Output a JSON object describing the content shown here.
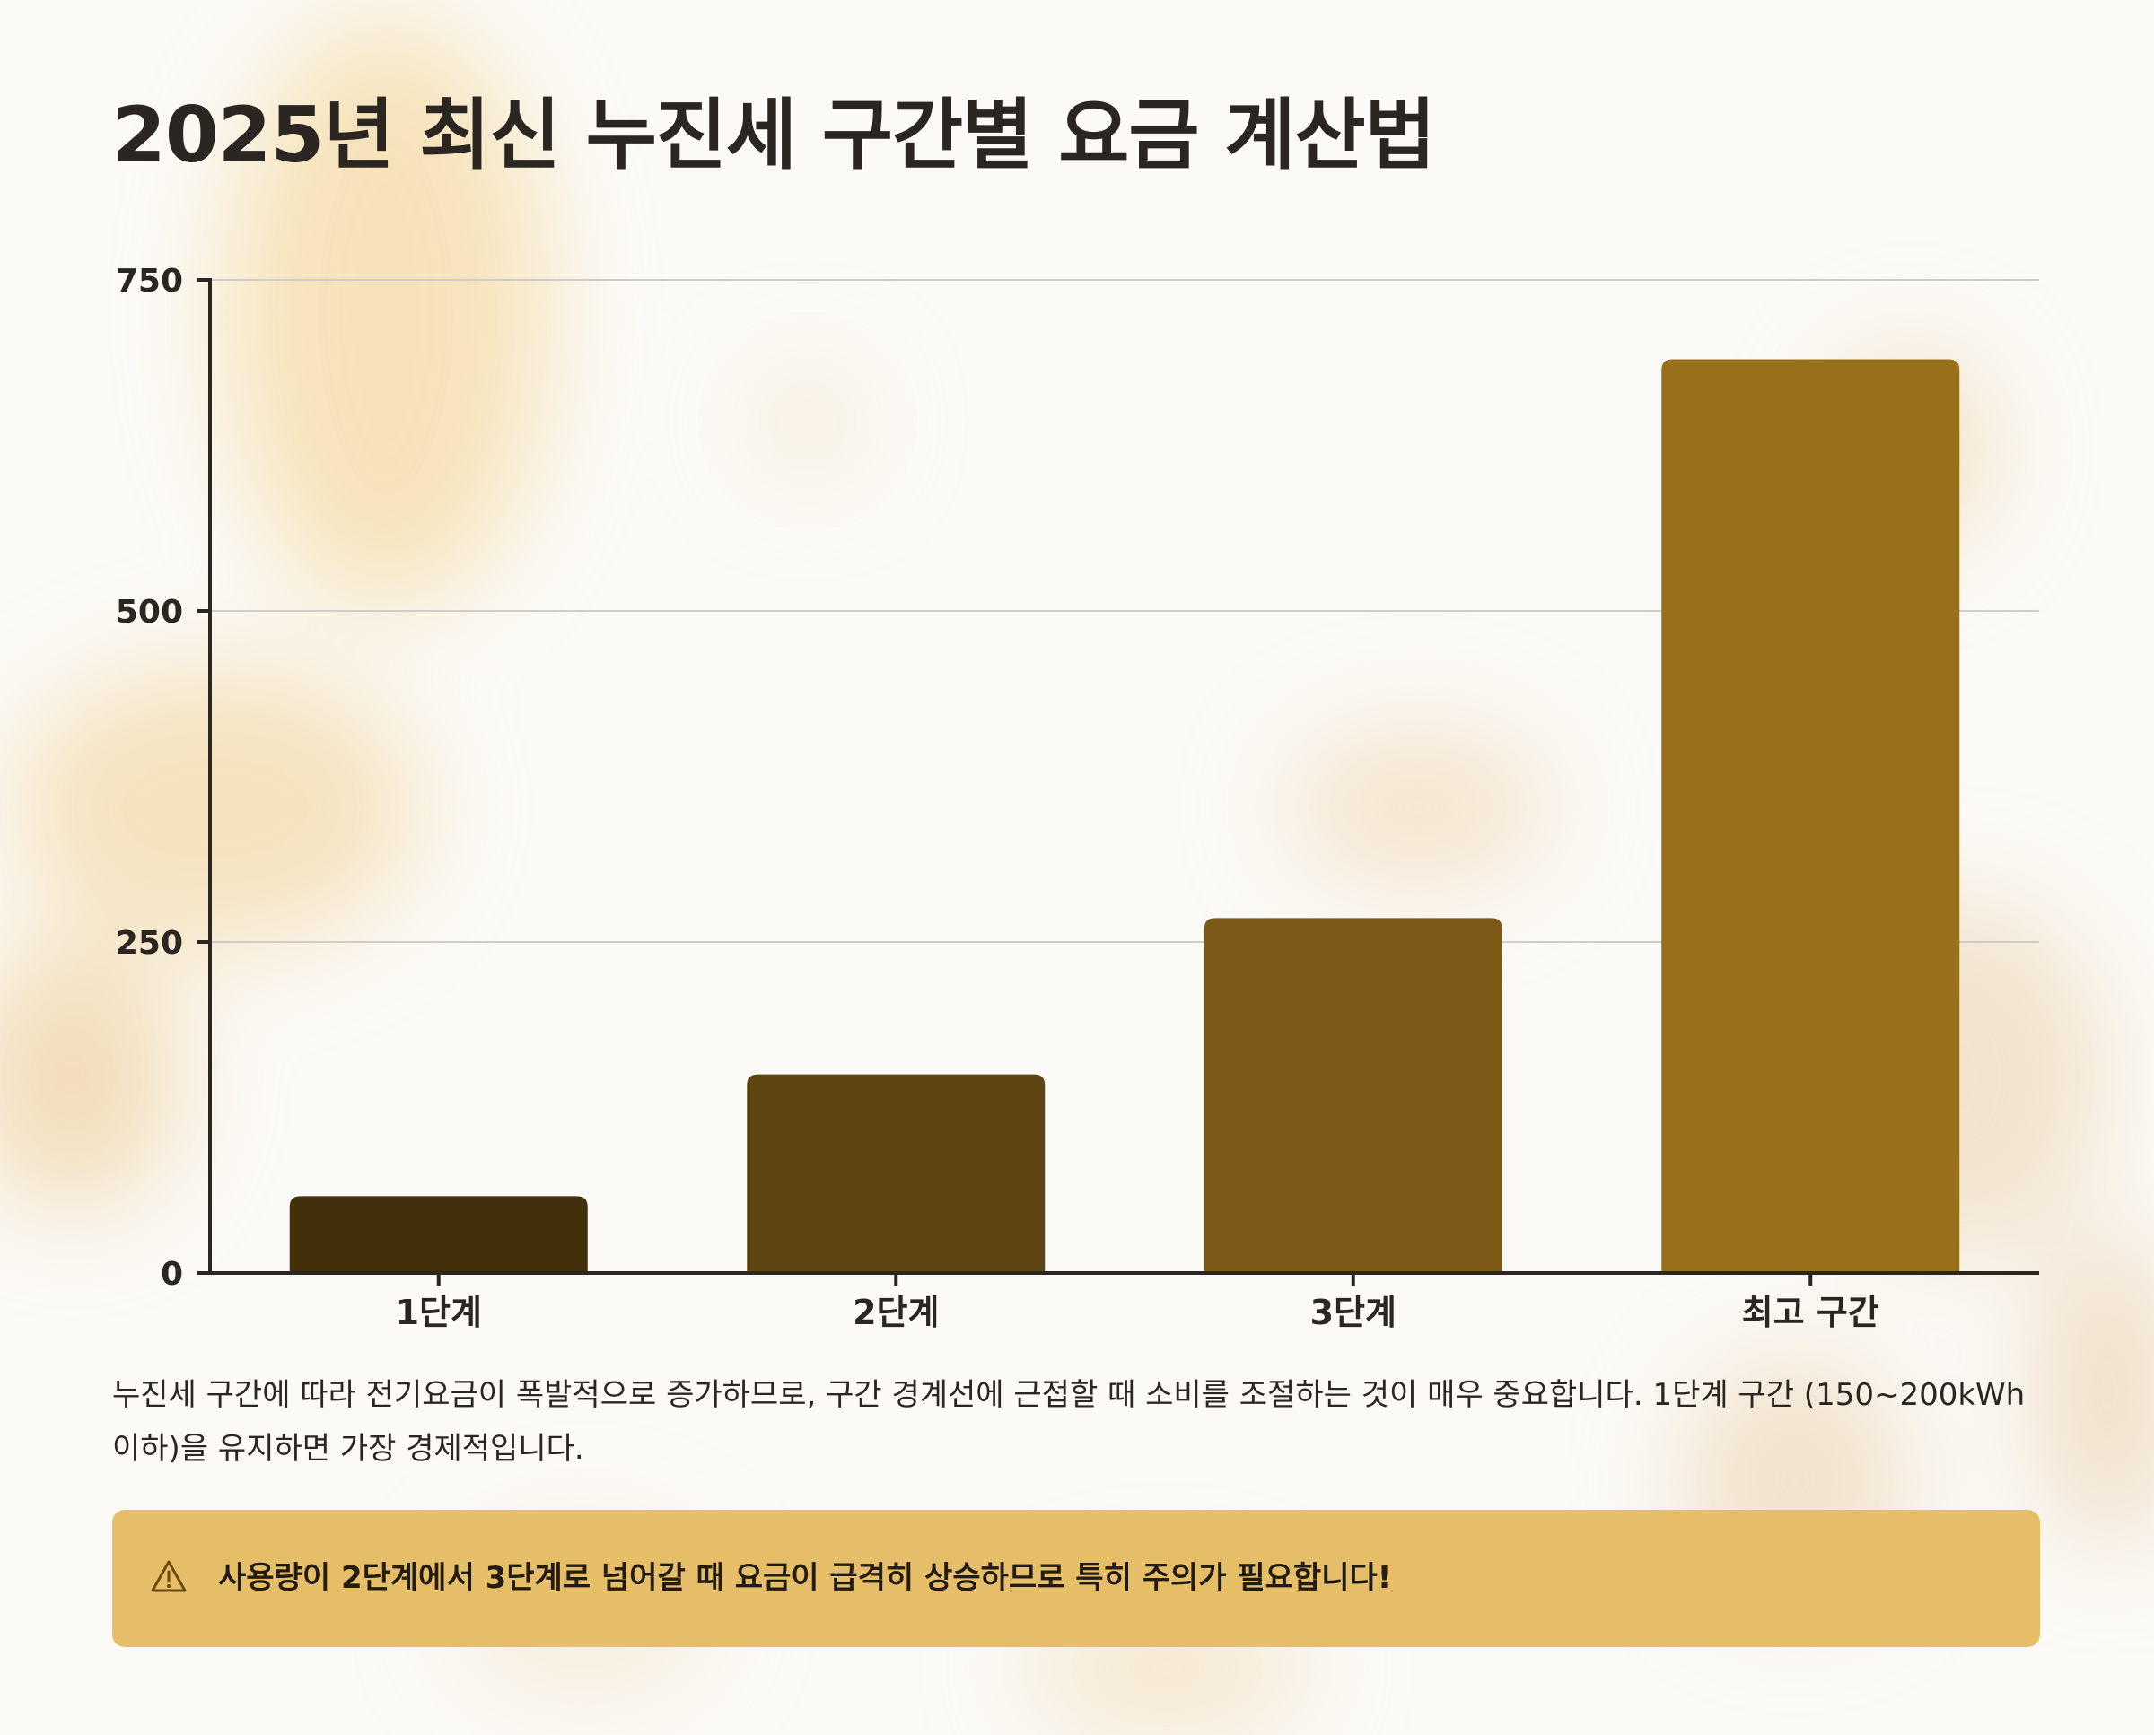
{
  "page": {
    "title": "2025년 최신 누진세 구간별 요금 계산법",
    "description": "누진세 구간에 따라 전기요금이 폭발적으로 증가하므로, 구간 경계선에 근접할 때 소비를 조절하는 것이 매우 중요합니다. 1단계 구간 (150~200kWh 이하)을 유지하면 가장 경제적입니다.",
    "alert": {
      "icon": "warning-triangle-icon",
      "text": "사용량이 2단계에서 3단계로 넘어갈 때 요금이 급격히 상승하므로 특히 주의가 필요합니다!"
    }
  },
  "colors": {
    "alert_background": "#e7be68",
    "bar_colors": [
      "#42300c",
      "#5e4512",
      "#7d5918",
      "#98701c"
    ]
  },
  "chart_data": {
    "type": "bar",
    "title": "",
    "xlabel": "",
    "ylabel": "",
    "categories": [
      "1단계",
      "2단계",
      "3단계",
      "최고 구간"
    ],
    "values": [
      58,
      150,
      268,
      690
    ],
    "ylim": [
      0,
      750
    ],
    "yticks": [
      0,
      250,
      500,
      750
    ],
    "grid": true,
    "legend": "none"
  }
}
